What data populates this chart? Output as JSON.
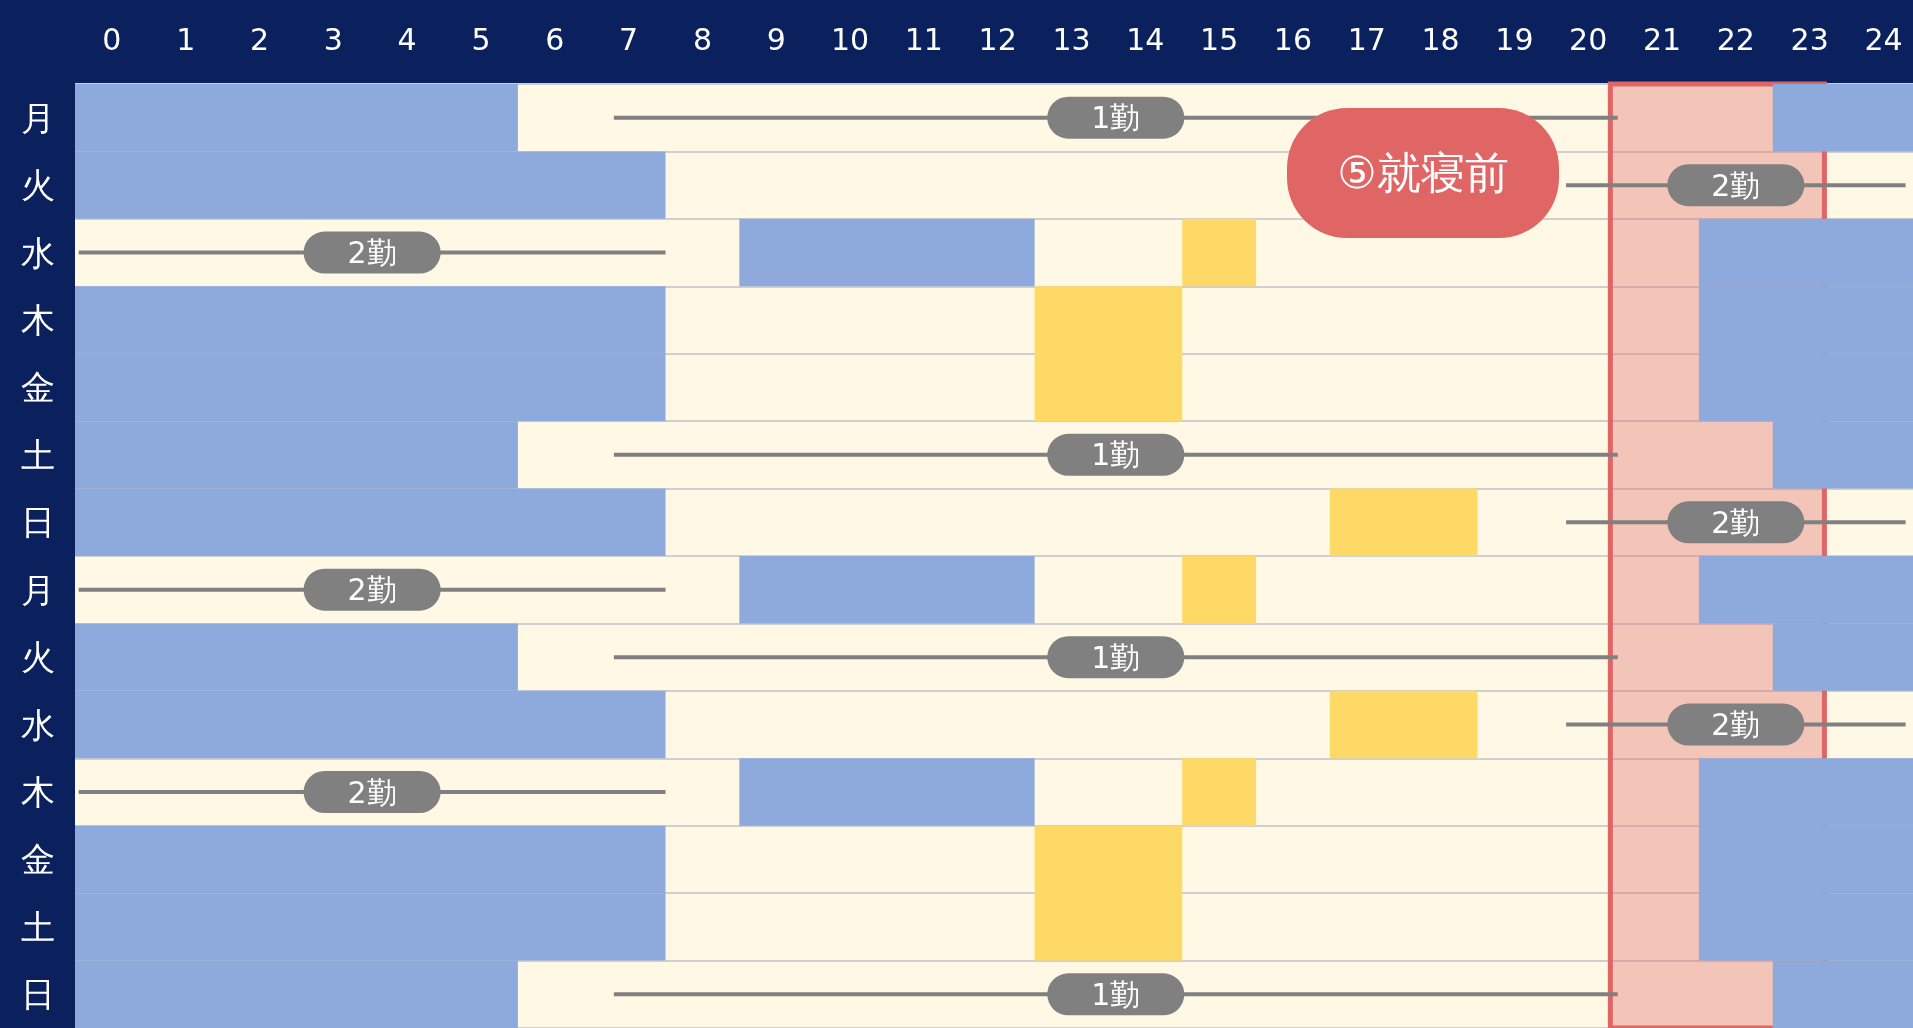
{
  "chart_data": {
    "type": "bar",
    "orientation": "horizontal",
    "categories": [
      "月",
      "火",
      "水",
      "木",
      "金",
      "土",
      "日",
      "月",
      "火",
      "水",
      "木",
      "金",
      "土",
      "日"
    ],
    "xlim": [
      -0.5,
      24.4
    ],
    "xticks": [
      0,
      1,
      2,
      3,
      4,
      5,
      6,
      7,
      8,
      9,
      10,
      11,
      12,
      13,
      14,
      15,
      16,
      17,
      18,
      19,
      20,
      21,
      22,
      23,
      24
    ],
    "grid": "y",
    "series": [
      {
        "color": "#8eaadc",
        "base": [
          -0.5,
          -0.5,
          null,
          -0.5,
          -0.5,
          -0.5,
          -0.5,
          null,
          -0.5,
          -0.5,
          null,
          -0.5,
          -0.5,
          -0.5
        ],
        "values": [
          6,
          8,
          null,
          8,
          8,
          6,
          8,
          null,
          6,
          8,
          null,
          8,
          8,
          6
        ]
      },
      {
        "color": "#8eaadc",
        "base": [
          null,
          null,
          8.5,
          null,
          null,
          null,
          null,
          8.5,
          null,
          null,
          8.5,
          null,
          null,
          null
        ],
        "values": [
          null,
          null,
          4,
          null,
          null,
          null,
          null,
          4,
          null,
          null,
          4,
          null,
          null,
          null
        ]
      },
      {
        "color": "#ffd966",
        "base": [
          null,
          null,
          14.5,
          12.5,
          12.5,
          null,
          16.5,
          14.5,
          null,
          16.5,
          14.5,
          12.5,
          12.5,
          null
        ],
        "values": [
          null,
          null,
          1,
          2,
          2,
          null,
          2,
          1,
          null,
          2,
          1,
          2,
          2,
          null
        ]
      },
      {
        "color": "#8eaadc",
        "base": [
          22.5,
          null,
          21.5,
          21.5,
          21.5,
          22.5,
          null,
          21.5,
          22.5,
          null,
          21.5,
          21.5,
          21.5,
          22.5
        ],
        "values": [
          1.9,
          null,
          2.9,
          2.9,
          2.9,
          1.9,
          null,
          2.9,
          1.9,
          null,
          2.9,
          2.9,
          2.9,
          1.9
        ]
      },
      {
        "name": "1勤",
        "color": "#808080",
        "base": [
          6.8,
          null,
          null,
          null,
          null,
          6.8,
          null,
          null,
          6.8,
          null,
          null,
          null,
          null,
          6.8
        ],
        "values": [
          13.6,
          null,
          null,
          null,
          null,
          13.6,
          null,
          null,
          13.6,
          null,
          null,
          null,
          null,
          13.6
        ]
      },
      {
        "name": "2勤",
        "color": "#808080",
        "base": [
          null,
          19.7,
          -0.45,
          null,
          null,
          null,
          19.7,
          -0.45,
          null,
          19.7,
          -0.45,
          null,
          null,
          null
        ],
        "values": [
          null,
          4.6,
          7.95,
          null,
          null,
          null,
          4.6,
          7.95,
          null,
          4.6,
          7.95,
          null,
          null,
          null
        ]
      }
    ],
    "bands": [
      {
        "axis": "x",
        "from": 20.3,
        "to": 23.2,
        "label": "⑤就寝前",
        "color": "#e06666"
      }
    ]
  }
}
